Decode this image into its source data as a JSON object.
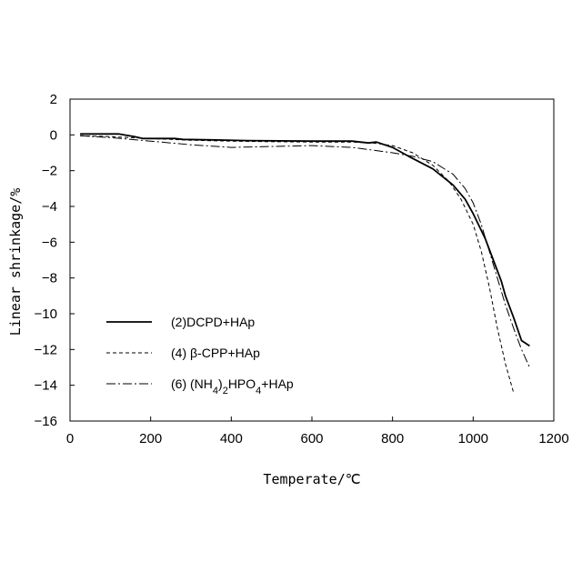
{
  "chart_data": {
    "type": "line",
    "title": "",
    "xlabel": "Temperate/℃",
    "ylabel": "Linear shrinkage/%",
    "xlim": [
      0,
      1200
    ],
    "ylim": [
      -16,
      2
    ],
    "xticks": [
      0,
      200,
      400,
      600,
      800,
      1000,
      1200
    ],
    "yticks": [
      2,
      0,
      -2,
      -4,
      -6,
      -8,
      -10,
      -12,
      -14,
      -16
    ],
    "grid": false,
    "legend_position": "lower-left",
    "series": [
      {
        "name": "(2)DCPD+HAp",
        "line_style": "solid",
        "color": "#000000",
        "x": [
          25,
          120,
          160,
          180,
          260,
          280,
          350,
          440,
          600,
          700,
          740,
          760,
          800,
          840,
          900,
          950,
          980,
          1000,
          1030,
          1050,
          1070,
          1080,
          1100,
          1120,
          1140
        ],
        "y": [
          0.05,
          0.05,
          -0.1,
          -0.2,
          -0.2,
          -0.25,
          -0.28,
          -0.32,
          -0.35,
          -0.35,
          -0.45,
          -0.4,
          -0.7,
          -1.2,
          -1.9,
          -2.8,
          -3.6,
          -4.4,
          -5.8,
          -7.0,
          -8.2,
          -9.0,
          -10.2,
          -11.5,
          -11.8
        ]
      },
      {
        "name": "(4) β-CPP+HAp",
        "line_style": "dashed",
        "color": "#000000",
        "x": [
          25,
          100,
          200,
          300,
          400,
          500,
          600,
          700,
          750,
          800,
          850,
          900,
          940,
          970,
          1000,
          1020,
          1040,
          1060,
          1080,
          1100
        ],
        "y": [
          -0.05,
          -0.1,
          -0.2,
          -0.3,
          -0.35,
          -0.38,
          -0.4,
          -0.4,
          -0.45,
          -0.6,
          -1.0,
          -1.7,
          -2.6,
          -3.6,
          -5.0,
          -6.5,
          -8.5,
          -10.8,
          -12.8,
          -14.4
        ]
      },
      {
        "name": "(6) (NH4)2HPO4+HAp",
        "line_style": "dash-dot",
        "color": "#000000",
        "x": [
          25,
          100,
          200,
          300,
          400,
          500,
          600,
          700,
          800,
          850,
          900,
          950,
          980,
          1000,
          1020,
          1040,
          1060,
          1080,
          1100,
          1120,
          1140
        ],
        "y": [
          -0.05,
          -0.15,
          -0.35,
          -0.55,
          -0.7,
          -0.65,
          -0.6,
          -0.7,
          -1.0,
          -1.2,
          -1.5,
          -2.2,
          -3.0,
          -3.8,
          -5.0,
          -6.5,
          -8.0,
          -9.5,
          -10.8,
          -12.0,
          -13.0
        ]
      }
    ]
  },
  "legend_subscripts": {
    "series3_subscript_1": "4",
    "series3_subscript_2": "2",
    "series3_subscript_3": "4"
  }
}
